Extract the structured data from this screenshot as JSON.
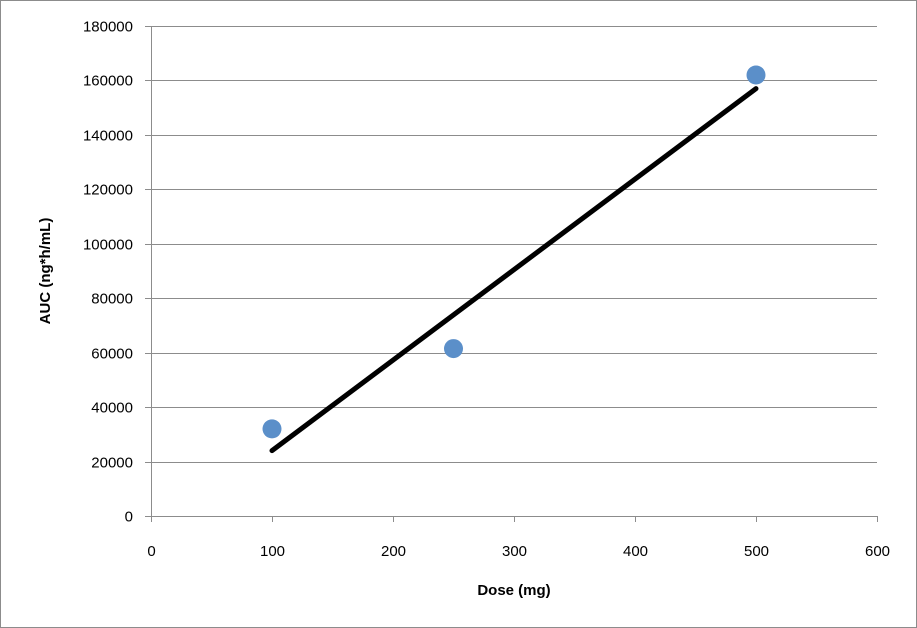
{
  "chart_data": {
    "type": "scatter",
    "title": "",
    "xlabel": "Dose (mg)",
    "ylabel": "AUC (ng*h/mL)",
    "xlim": [
      0,
      600
    ],
    "ylim": [
      0,
      180000
    ],
    "x_ticks": [
      0,
      100,
      200,
      300,
      400,
      500,
      600
    ],
    "y_ticks": [
      0,
      20000,
      40000,
      60000,
      80000,
      100000,
      120000,
      140000,
      160000,
      180000
    ],
    "grid": "horizontal",
    "legend": "none",
    "series": [
      {
        "type": "scatter",
        "color": "#5b8fc9",
        "points": [
          {
            "x": 100,
            "y": 32000
          },
          {
            "x": 250,
            "y": 61500
          },
          {
            "x": 500,
            "y": 162000
          }
        ]
      }
    ],
    "trendline": {
      "type": "linear",
      "color": "#000000",
      "points": [
        {
          "x": 100,
          "y": 24000
        },
        {
          "x": 500,
          "y": 157000
        }
      ]
    }
  }
}
